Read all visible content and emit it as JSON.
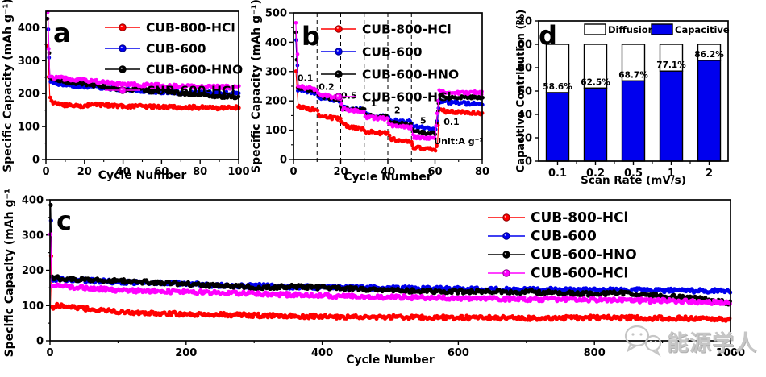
{
  "watermark": {
    "text": "能源学人"
  },
  "chart_data": [
    {
      "id": "a",
      "type": "scatter",
      "panel_label": "a",
      "title": "",
      "xlabel": "Cycle Number",
      "ylabel": "Specific Capacity (mAh g⁻¹)",
      "xlim": [
        0,
        100
      ],
      "ylim": [
        0,
        450
      ],
      "xticks": [
        0,
        20,
        40,
        60,
        80,
        100
      ],
      "yticks": [
        0,
        100,
        200,
        300,
        400
      ],
      "grid": false,
      "legend_position": "top-right-inside",
      "series": [
        {
          "name": "CUB-800-HCl",
          "color": "#ff0000",
          "points": [
            [
              1,
              345
            ],
            [
              2,
              185
            ],
            [
              4,
              172
            ],
            [
              8,
              166
            ],
            [
              12,
              163
            ],
            [
              16,
              162
            ],
            [
              20,
              163
            ],
            [
              26,
              167
            ],
            [
              30,
              165
            ],
            [
              40,
              162
            ],
            [
              50,
              161
            ],
            [
              60,
              160
            ],
            [
              70,
              159
            ],
            [
              80,
              158
            ],
            [
              90,
              157
            ],
            [
              100,
              158
            ]
          ]
        },
        {
          "name": "CUB-600",
          "color": "#0000ee",
          "points": [
            [
              1,
              400
            ],
            [
              2,
              242
            ],
            [
              4,
              233
            ],
            [
              8,
              228
            ],
            [
              12,
              225
            ],
            [
              20,
              222
            ],
            [
              30,
              218
            ],
            [
              40,
              212
            ],
            [
              50,
              208
            ],
            [
              60,
              205
            ],
            [
              70,
              204
            ],
            [
              80,
              203
            ],
            [
              90,
              202
            ],
            [
              100,
              200
            ]
          ]
        },
        {
          "name": "CUB-600-HNO",
          "color": "#000000",
          "points": [
            [
              1,
              430
            ],
            [
              2,
              250
            ],
            [
              4,
              244
            ],
            [
              8,
              239
            ],
            [
              15,
              233
            ],
            [
              20,
              230
            ],
            [
              30,
              221
            ],
            [
              40,
              211
            ],
            [
              48,
              214
            ],
            [
              55,
              210
            ],
            [
              60,
              212
            ],
            [
              68,
              203
            ],
            [
              75,
              198
            ],
            [
              80,
              195
            ],
            [
              90,
              192
            ],
            [
              100,
              191
            ]
          ]
        },
        {
          "name": "CUB-600-HCl",
          "color": "#ff00ff",
          "points": [
            [
              1,
              450
            ],
            [
              2,
              253
            ],
            [
              4,
              250
            ],
            [
              8,
              247
            ],
            [
              15,
              243
            ],
            [
              20,
              240
            ],
            [
              30,
              234
            ],
            [
              40,
              229
            ],
            [
              50,
              226
            ],
            [
              60,
              224
            ],
            [
              70,
              222
            ],
            [
              80,
              221
            ],
            [
              90,
              220
            ],
            [
              100,
              219
            ]
          ]
        }
      ]
    },
    {
      "id": "b",
      "type": "scatter",
      "panel_label": "b",
      "title": "",
      "xlabel": "Cycle Number",
      "ylabel": "Specific Capacity (mAh g⁻¹)",
      "xlim": [
        0,
        80
      ],
      "ylim": [
        0,
        500
      ],
      "xticks": [
        0,
        20,
        40,
        60,
        80
      ],
      "yticks": [
        0,
        100,
        200,
        300,
        400,
        500
      ],
      "grid": false,
      "vlines_dashed": [
        10,
        20,
        30,
        40,
        50,
        60
      ],
      "annotations": [
        {
          "text": "0.1",
          "x": 5,
          "y": 268
        },
        {
          "text": "0.2",
          "x": 14,
          "y": 238
        },
        {
          "text": "0.5",
          "x": 23.5,
          "y": 207
        },
        {
          "text": "1",
          "x": 34,
          "y": 182
        },
        {
          "text": "2",
          "x": 44,
          "y": 158
        },
        {
          "text": "5",
          "x": 55,
          "y": 122
        },
        {
          "text": "0.1",
          "x": 67,
          "y": 118
        },
        {
          "text": "Unit:A g⁻¹",
          "x": 70,
          "y": 52
        }
      ],
      "legend_position": "top-right-inside",
      "series": [
        {
          "name": "CUB-800-HCl",
          "color": "#ff0000",
          "points": [
            [
              1,
              305
            ],
            [
              2,
              182
            ],
            [
              5,
              176
            ],
            [
              10,
              166
            ],
            [
              10.8,
              150
            ],
            [
              15,
              144
            ],
            [
              20,
              139
            ],
            [
              20.8,
              120
            ],
            [
              25,
              110
            ],
            [
              30,
              104
            ],
            [
              30.8,
              96
            ],
            [
              35,
              92
            ],
            [
              40,
              88
            ],
            [
              40.8,
              72
            ],
            [
              45,
              65
            ],
            [
              50,
              60
            ],
            [
              50.8,
              42
            ],
            [
              55,
              38
            ],
            [
              60,
              34
            ],
            [
              61,
              45
            ],
            [
              61.8,
              168
            ],
            [
              65,
              164
            ],
            [
              70,
              162
            ],
            [
              75,
              160
            ],
            [
              80,
              157
            ]
          ]
        },
        {
          "name": "CUB-600",
          "color": "#0000ee",
          "points": [
            [
              1,
              405
            ],
            [
              2,
              240
            ],
            [
              5,
              234
            ],
            [
              10,
              226
            ],
            [
              10.8,
              213
            ],
            [
              15,
              205
            ],
            [
              20,
              198
            ],
            [
              20.8,
              180
            ],
            [
              25,
              173
            ],
            [
              30,
              169
            ],
            [
              30.8,
              153
            ],
            [
              35,
              149
            ],
            [
              40,
              146
            ],
            [
              40.8,
              136
            ],
            [
              45,
              131
            ],
            [
              50,
              128
            ],
            [
              50.8,
              113
            ],
            [
              55,
              108
            ],
            [
              60,
              104
            ],
            [
              61,
              130
            ],
            [
              61.8,
              200
            ],
            [
              65,
              196
            ],
            [
              70,
              193
            ],
            [
              75,
              191
            ],
            [
              80,
              189
            ]
          ]
        },
        {
          "name": "CUB-600-HNO",
          "color": "#000000",
          "points": [
            [
              1,
              435
            ],
            [
              2,
              244
            ],
            [
              5,
              240
            ],
            [
              10,
              232
            ],
            [
              10.8,
              218
            ],
            [
              15,
              210
            ],
            [
              20,
              205
            ],
            [
              20.8,
              176
            ],
            [
              25,
              172
            ],
            [
              30,
              170
            ],
            [
              30.8,
              150
            ],
            [
              35,
              148
            ],
            [
              40,
              146
            ],
            [
              40.8,
              124
            ],
            [
              45,
              121
            ],
            [
              50,
              119
            ],
            [
              50.8,
              95
            ],
            [
              55,
              92
            ],
            [
              60,
              90
            ],
            [
              61.8,
              218
            ],
            [
              65,
              215
            ],
            [
              70,
              213
            ],
            [
              75,
              212
            ],
            [
              80,
              211
            ]
          ]
        },
        {
          "name": "CUB-600-HCl",
          "color": "#ff00ff",
          "points": [
            [
              1,
              465
            ],
            [
              2,
              248
            ],
            [
              5,
              245
            ],
            [
              10,
              240
            ],
            [
              10.8,
              222
            ],
            [
              15,
              215
            ],
            [
              20,
              210
            ],
            [
              20.8,
              172
            ],
            [
              25,
              167
            ],
            [
              30,
              163
            ],
            [
              30.8,
              145
            ],
            [
              35,
              141
            ],
            [
              40,
              138
            ],
            [
              40.8,
              118
            ],
            [
              45,
              113
            ],
            [
              50,
              110
            ],
            [
              50.8,
              78
            ],
            [
              55,
              74
            ],
            [
              60,
              71
            ],
            [
              61.8,
              232
            ],
            [
              65,
              230
            ],
            [
              70,
              229
            ],
            [
              75,
              228
            ],
            [
              80,
              227
            ]
          ]
        }
      ]
    },
    {
      "id": "d",
      "type": "stacked-bar",
      "panel_label": "d",
      "title": "",
      "xlabel": "Scan Rate (mV/s)",
      "ylabel": "Capacitive Contribution (%)",
      "ylim": [
        0,
        120
      ],
      "yticks": [
        0,
        20,
        40,
        60,
        80,
        100,
        120
      ],
      "grid": false,
      "categories": [
        "0.1",
        "0.2",
        "0.5",
        "1",
        "2"
      ],
      "legend": [
        {
          "name": "Diffusion",
          "color": "#ffffff"
        },
        {
          "name": "Capacitive",
          "color": "#0000ee"
        }
      ],
      "series": [
        {
          "name": "Capacitive",
          "color": "#0000ee",
          "values": [
            58.6,
            62.5,
            68.7,
            77.1,
            86.2
          ]
        },
        {
          "name": "Diffusion",
          "color": "#ffffff",
          "values": [
            41.4,
            37.5,
            31.3,
            22.9,
            13.8
          ]
        }
      ],
      "bar_labels": [
        "58.6%",
        "62.5%",
        "68.7%",
        "77.1%",
        "86.2%"
      ],
      "stack_total": 100
    },
    {
      "id": "c",
      "type": "scatter",
      "panel_label": "c",
      "title": "",
      "xlabel": "Cycle Number",
      "ylabel": "Specific Capacity (mAh g⁻¹)",
      "xlim": [
        0,
        1000
      ],
      "ylim": [
        0,
        400
      ],
      "xticks": [
        0,
        200,
        400,
        600,
        800,
        1000
      ],
      "yticks": [
        0,
        100,
        200,
        300,
        400
      ],
      "grid": false,
      "legend_position": "top-center-inside",
      "series": [
        {
          "name": "CUB-800-HCl",
          "color": "#ff0000",
          "points": [
            [
              1,
              240
            ],
            [
              3,
              95
            ],
            [
              10,
              99
            ],
            [
              20,
              100
            ],
            [
              35,
              95
            ],
            [
              50,
              91
            ],
            [
              80,
              86
            ],
            [
              100,
              83
            ],
            [
              150,
              79
            ],
            [
              200,
              76
            ],
            [
              300,
              72
            ],
            [
              400,
              69
            ],
            [
              500,
              67
            ],
            [
              600,
              66
            ],
            [
              700,
              64
            ],
            [
              800,
              66
            ],
            [
              900,
              64
            ],
            [
              1000,
              62
            ]
          ]
        },
        {
          "name": "CUB-600",
          "color": "#0000ee",
          "points": [
            [
              1,
              340
            ],
            [
              3,
              176
            ],
            [
              20,
              174
            ],
            [
              50,
              171
            ],
            [
              100,
              167
            ],
            [
              200,
              162
            ],
            [
              240,
              158
            ],
            [
              300,
              156
            ],
            [
              400,
              152
            ],
            [
              500,
              149
            ],
            [
              600,
              147
            ],
            [
              700,
              145
            ],
            [
              800,
              144
            ],
            [
              900,
              143
            ],
            [
              1000,
              141
            ]
          ]
        },
        {
          "name": "CUB-600-HNO",
          "color": "#000000",
          "points": [
            [
              1,
              390
            ],
            [
              3,
              179
            ],
            [
              20,
              176
            ],
            [
              50,
              173
            ],
            [
              100,
              170
            ],
            [
              200,
              161
            ],
            [
              300,
              152
            ],
            [
              360,
              154
            ],
            [
              420,
              149
            ],
            [
              500,
              143
            ],
            [
              600,
              140
            ],
            [
              700,
              139
            ],
            [
              780,
              133
            ],
            [
              840,
              136
            ],
            [
              900,
              127
            ],
            [
              950,
              120
            ],
            [
              1000,
              107
            ]
          ]
        },
        {
          "name": "CUB-600-HCl",
          "color": "#ff00ff",
          "points": [
            [
              1,
              300
            ],
            [
              3,
              152
            ],
            [
              10,
              156
            ],
            [
              30,
              153
            ],
            [
              60,
              149
            ],
            [
              100,
              144
            ],
            [
              200,
              139
            ],
            [
              300,
              133
            ],
            [
              400,
              128
            ],
            [
              500,
              124
            ],
            [
              600,
              121
            ],
            [
              700,
              118
            ],
            [
              800,
              116
            ],
            [
              900,
              113
            ],
            [
              1000,
              108
            ]
          ]
        }
      ]
    }
  ]
}
